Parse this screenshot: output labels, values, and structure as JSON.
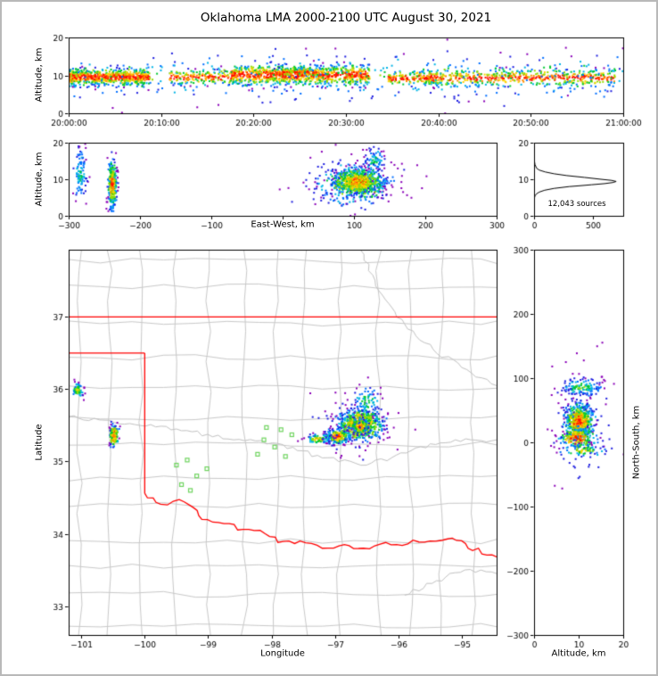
{
  "title": "Oklahoma LMA 2000-2100 UTC August 30, 2021",
  "colors": {
    "background": "#ffffff",
    "frame_border": "#b9b9b9",
    "axis": "#000000",
    "county": "#c9c9c9",
    "river": "#c2c2c2",
    "state_border": "#ff0000",
    "station": "#6fd45f",
    "histogram_line": "#000000",
    "heat_scale": [
      "#8a00b8",
      "#1f1fe0",
      "#006eff",
      "#00b4e6",
      "#00c832",
      "#96dc00",
      "#ffd200",
      "#ff8c00",
      "#ff0f00"
    ]
  },
  "chart_data": [
    {
      "id": "time_height",
      "type": "scatter",
      "xlabel": "",
      "ylabel": "Altitude, km",
      "xlim": [
        0,
        3600
      ],
      "ylim": [
        0,
        20
      ],
      "xticks": [
        {
          "v": 0,
          "t": "20:00:00"
        },
        {
          "v": 600,
          "t": "20:10:00"
        },
        {
          "v": 1200,
          "t": "20:20:00"
        },
        {
          "v": 1800,
          "t": "20:30:00"
        },
        {
          "v": 2400,
          "t": "20:40:00"
        },
        {
          "v": 3000,
          "t": "20:50:00"
        },
        {
          "v": 3600,
          "t": "21:00:00"
        }
      ],
      "yticks": [
        {
          "v": 0,
          "t": "0"
        },
        {
          "v": 10,
          "t": "10"
        },
        {
          "v": 20,
          "t": "20"
        }
      ],
      "clusters": [
        {
          "x": 240,
          "sx": 280,
          "ux": 1,
          "y": 9.8,
          "sy": 1.1,
          "n": 700
        },
        {
          "x": 1500,
          "sx": 450,
          "ux": 1,
          "y": 10.3,
          "sy": 1.3,
          "n": 900
        },
        {
          "x": 2900,
          "sx": 650,
          "ux": 1,
          "y": 9.6,
          "sy": 1.1,
          "n": 500
        },
        {
          "x": 850,
          "sx": 200,
          "ux": 1,
          "y": 9.7,
          "sy": 0.9,
          "n": 180
        },
        {
          "x": 2250,
          "sx": 180,
          "ux": 1,
          "y": 9.5,
          "sy": 0.9,
          "n": 150
        },
        {
          "x": 1480,
          "sx": 150,
          "ux": 1,
          "y": 11.0,
          "sy": 0.5,
          "n": 120
        },
        {
          "x": 1800,
          "sx": 1800,
          "ux": 1,
          "y": 10.0,
          "sy": 2.6,
          "n": 350,
          "hot": 0.6
        },
        {
          "x": 1800,
          "sx": 1800,
          "ux": 1,
          "y": 9.0,
          "sy": 4.2,
          "n": 130,
          "hot": 0.3
        }
      ]
    },
    {
      "id": "ew_height",
      "type": "scatter",
      "xlabel": "East-West, km",
      "ylabel": "Altitude, km",
      "xlim": [
        -300,
        300
      ],
      "ylim": [
        0,
        20
      ],
      "xticks": [
        {
          "v": -300,
          "t": "−300"
        },
        {
          "v": -200,
          "t": "−200"
        },
        {
          "v": -100,
          "t": "−100"
        },
        {
          "v": 0,
          "t": ""
        },
        {
          "v": 100,
          "t": "100"
        },
        {
          "v": 200,
          "t": "200"
        },
        {
          "v": 300,
          "t": "300"
        }
      ],
      "yticks": [
        {
          "v": 0,
          "t": "0"
        },
        {
          "v": 10,
          "t": "10"
        },
        {
          "v": 20,
          "t": "20"
        }
      ],
      "clusters": [
        {
          "x": -285,
          "y": 12,
          "sx": 5,
          "sy": 3.5,
          "n": 100,
          "hot": 0.5
        },
        {
          "x": -240,
          "y": 9,
          "sx": 3,
          "sy": 3.2,
          "n": 300
        },
        {
          "x": 105,
          "y": 9.6,
          "sx": 16,
          "sy": 1.6,
          "n": 800
        },
        {
          "x": 100,
          "y": 9.0,
          "sx": 26,
          "sy": 2.8,
          "n": 280,
          "hot": 0.8
        },
        {
          "x": 128,
          "y": 15.5,
          "sx": 7,
          "sy": 1.8,
          "n": 70,
          "hot": 0.5
        },
        {
          "x": 90,
          "y": 9.0,
          "sx": 45,
          "sy": 5,
          "n": 60,
          "hot": 0.25
        }
      ]
    },
    {
      "id": "alt_histogram",
      "type": "line",
      "xlabel": "",
      "ylabel": "",
      "annotation": "12,043 sources",
      "xlim": [
        0,
        760
      ],
      "ylim": [
        0,
        20
      ],
      "xticks": [
        {
          "v": 0,
          "t": "0"
        },
        {
          "v": 500,
          "t": "500"
        }
      ],
      "yticks": [
        {
          "v": 0,
          "t": "0"
        },
        {
          "v": 10,
          "t": "10"
        },
        {
          "v": 20,
          "t": "20"
        }
      ],
      "profile": [
        [
          20,
          0
        ],
        [
          17,
          0
        ],
        [
          16,
          1
        ],
        [
          15,
          3
        ],
        [
          14,
          8
        ],
        [
          13,
          22
        ],
        [
          12.5,
          45
        ],
        [
          12,
          95
        ],
        [
          11.5,
          170
        ],
        [
          11,
          280
        ],
        [
          10.5,
          430
        ],
        [
          10,
          570
        ],
        [
          9.7,
          660
        ],
        [
          9.4,
          700
        ],
        [
          9.1,
          670
        ],
        [
          8.8,
          600
        ],
        [
          8.5,
          490
        ],
        [
          8.2,
          380
        ],
        [
          8,
          300
        ],
        [
          7.5,
          170
        ],
        [
          7,
          90
        ],
        [
          6.5,
          45
        ],
        [
          6,
          20
        ],
        [
          5.5,
          9
        ],
        [
          5,
          4
        ],
        [
          4.5,
          1
        ],
        [
          4,
          0
        ],
        [
          0,
          0
        ]
      ]
    },
    {
      "id": "plan_map",
      "type": "scatter_map",
      "xlabel": "Longitude",
      "ylabel": "Latitude",
      "xlim": [
        -101.2,
        -94.45
      ],
      "ylim": [
        32.6,
        37.93
      ],
      "xticks": [
        {
          "v": -101,
          "t": "−101"
        },
        {
          "v": -100,
          "t": "−100"
        },
        {
          "v": -99,
          "t": "−99"
        },
        {
          "v": -98,
          "t": "−98"
        },
        {
          "v": -97,
          "t": "−97"
        },
        {
          "v": -96,
          "t": "−96"
        },
        {
          "v": -95,
          "t": "−95"
        }
      ],
      "yticks": [
        {
          "v": 33,
          "t": "33"
        },
        {
          "v": 34,
          "t": "34"
        },
        {
          "v": 35,
          "t": "35"
        },
        {
          "v": 36,
          "t": "36"
        },
        {
          "v": 37,
          "t": "37"
        }
      ],
      "map": {
        "lon_step": 0.5,
        "lat_step": 0.42,
        "border_lines": [
          [
            [
              -101.2,
              37
            ],
            [
              -94.45,
              37
            ]
          ],
          [
            [
              -101.2,
              36.5
            ],
            [
              -100,
              36.5
            ]
          ],
          [
            [
              -100,
              36.5
            ],
            [
              -100,
              34.56
            ]
          ]
        ],
        "red_river": [
          [
            -100,
            34.56
          ],
          [
            -99.75,
            34.41
          ],
          [
            -99.55,
            34.45
          ],
          [
            -99.3,
            34.4
          ],
          [
            -99.1,
            34.2
          ],
          [
            -98.75,
            34.14
          ],
          [
            -98.45,
            34.06
          ],
          [
            -98.1,
            34.0
          ],
          [
            -97.9,
            33.88
          ],
          [
            -97.55,
            33.9
          ],
          [
            -97.2,
            33.8
          ],
          [
            -96.85,
            33.85
          ],
          [
            -96.55,
            33.8
          ],
          [
            -96.2,
            33.88
          ],
          [
            -95.85,
            33.86
          ],
          [
            -95.5,
            33.9
          ],
          [
            -95.15,
            33.94
          ],
          [
            -94.9,
            33.8
          ],
          [
            -94.45,
            33.68
          ]
        ],
        "rivers": [
          [
            [
              -101.2,
              35.62
            ],
            [
              -100.4,
              35.52
            ],
            [
              -99.5,
              35.45
            ],
            [
              -98.6,
              35.3
            ],
            [
              -97.9,
              35.25
            ],
            [
              -97.2,
              35.05
            ],
            [
              -96.5,
              34.95
            ],
            [
              -95.8,
              35.15
            ],
            [
              -95.1,
              35.3
            ],
            [
              -94.45,
              35.3
            ]
          ],
          [
            [
              -96.6,
              37.93
            ],
            [
              -96.25,
              37.3
            ],
            [
              -95.9,
              36.9
            ],
            [
              -95.45,
              36.55
            ],
            [
              -95.0,
              36.3
            ],
            [
              -94.45,
              36.05
            ]
          ],
          [
            [
              -95.9,
              33.15
            ],
            [
              -95.4,
              33.35
            ],
            [
              -94.95,
              33.5
            ],
            [
              -94.45,
              33.45
            ]
          ]
        ],
        "stations": [
          [
            -99.5,
            34.95
          ],
          [
            -99.33,
            35.02
          ],
          [
            -99.18,
            34.8
          ],
          [
            -99.42,
            34.68
          ],
          [
            -99.02,
            34.9
          ],
          [
            -99.28,
            34.6
          ],
          [
            -98.08,
            35.47
          ],
          [
            -97.85,
            35.44
          ],
          [
            -98.12,
            35.3
          ],
          [
            -97.68,
            35.37
          ],
          [
            -97.95,
            35.2
          ],
          [
            -98.22,
            35.1
          ],
          [
            -97.78,
            35.07
          ]
        ]
      },
      "clusters": [
        {
          "x": -96.62,
          "y": 35.52,
          "sx": 0.17,
          "sy": 0.11,
          "n": 650
        },
        {
          "x": -96.62,
          "y": 35.5,
          "sx": 0.07,
          "sy": 0.05,
          "n": 250
        },
        {
          "x": -96.97,
          "y": 35.36,
          "sx": 0.09,
          "sy": 0.05,
          "n": 220
        },
        {
          "x": -97.28,
          "y": 35.32,
          "sx": 0.1,
          "sy": 0.03,
          "n": 70,
          "hot": 0.8
        },
        {
          "x": -96.5,
          "y": 35.85,
          "sx": 0.12,
          "sy": 0.1,
          "n": 80,
          "hot": 0.55
        },
        {
          "x": -100.5,
          "y": 35.37,
          "sx": 0.035,
          "sy": 0.08,
          "n": 160
        },
        {
          "x": -101.07,
          "y": 36.0,
          "sx": 0.04,
          "sy": 0.05,
          "n": 70,
          "hot": 0.7
        },
        {
          "x": -96.8,
          "y": 35.5,
          "sx": 0.4,
          "sy": 0.25,
          "n": 60,
          "hot": 0.25
        }
      ]
    },
    {
      "id": "ns_height",
      "type": "scatter",
      "xlabel": "Altitude, km",
      "ylabel": "North-South, km",
      "xlim": [
        0,
        20
      ],
      "ylim": [
        -300,
        300
      ],
      "xticks": [
        {
          "v": 0,
          "t": "0"
        },
        {
          "v": 10,
          "t": "10"
        },
        {
          "v": 20,
          "t": "20"
        }
      ],
      "yticks": [
        {
          "v": 300,
          "t": "300"
        },
        {
          "v": 200,
          "t": "200"
        },
        {
          "v": 100,
          "t": "100"
        },
        {
          "v": 0,
          "t": "0"
        },
        {
          "v": -100,
          "t": "−100"
        },
        {
          "v": -200,
          "t": "−200"
        },
        {
          "v": -300,
          "t": "−300"
        }
      ],
      "clusters": [
        {
          "x": 10.5,
          "y": 87,
          "sx": 2.2,
          "sy": 7,
          "n": 130,
          "hot": 0.6
        },
        {
          "x": 10,
          "y": 33,
          "sx": 1.6,
          "sy": 14,
          "n": 650
        },
        {
          "x": 9.5,
          "y": 8,
          "sx": 2,
          "sy": 8,
          "n": 220
        },
        {
          "x": 11,
          "y": -12,
          "sx": 2.5,
          "sy": 5,
          "n": 70,
          "hot": 0.7
        },
        {
          "x": 10,
          "y": 25,
          "sx": 4,
          "sy": 55,
          "n": 70,
          "hot": 0.25
        }
      ]
    }
  ]
}
